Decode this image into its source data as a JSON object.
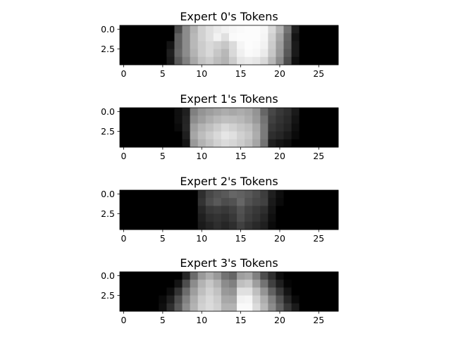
{
  "chart_data": [
    {
      "type": "heatmap",
      "title": "Expert 0's Tokens",
      "colormap": "gray",
      "x_ticks": [
        0,
        5,
        10,
        15,
        20,
        25
      ],
      "y_ticks": [
        "0.0",
        "2.5"
      ],
      "values": [
        [
          0,
          0,
          0,
          0,
          0,
          0,
          0,
          0.3,
          0.55,
          0.7,
          0.82,
          0.88,
          0.92,
          0.95,
          0.97,
          0.98,
          0.99,
          0.99,
          0.97,
          0.85,
          0.7,
          0.45,
          0.12,
          0,
          0,
          0,
          0,
          0
        ],
        [
          0,
          0,
          0,
          0,
          0,
          0,
          0,
          0.38,
          0.55,
          0.72,
          0.82,
          0.88,
          0.95,
          0.88,
          0.98,
          0.99,
          0.99,
          0.99,
          0.96,
          0.82,
          0.65,
          0.4,
          0.08,
          0,
          0,
          0,
          0,
          0
        ],
        [
          0,
          0,
          0,
          0,
          0,
          0,
          0.08,
          0.38,
          0.55,
          0.72,
          0.8,
          0.85,
          0.82,
          0.78,
          0.86,
          0.96,
          0.99,
          0.98,
          0.95,
          0.8,
          0.62,
          0.38,
          0.1,
          0,
          0,
          0,
          0,
          0
        ],
        [
          0,
          0,
          0,
          0,
          0,
          0,
          0.12,
          0.4,
          0.55,
          0.7,
          0.8,
          0.85,
          0.78,
          0.72,
          0.85,
          0.94,
          0.98,
          0.97,
          0.92,
          0.78,
          0.6,
          0.35,
          0.1,
          0,
          0,
          0,
          0,
          0
        ],
        [
          0,
          0,
          0,
          0,
          0,
          0,
          0.1,
          0.35,
          0.5,
          0.66,
          0.76,
          0.8,
          0.74,
          0.7,
          0.8,
          0.9,
          0.92,
          0.9,
          0.85,
          0.72,
          0.55,
          0.3,
          0.06,
          0,
          0,
          0,
          0,
          0
        ]
      ]
    },
    {
      "type": "heatmap",
      "title": "Expert 1's Tokens",
      "colormap": "gray",
      "x_ticks": [
        0,
        5,
        10,
        15,
        20,
        25
      ],
      "y_ticks": [
        "0.0",
        "2.5"
      ],
      "values": [
        [
          0,
          0,
          0,
          0,
          0,
          0,
          0,
          0.06,
          0.12,
          0.5,
          0.58,
          0.62,
          0.65,
          0.68,
          0.66,
          0.68,
          0.65,
          0.58,
          0.4,
          0.28,
          0.22,
          0.18,
          0.1,
          0,
          0,
          0,
          0,
          0
        ],
        [
          0,
          0,
          0,
          0,
          0,
          0,
          0,
          0.06,
          0.14,
          0.55,
          0.62,
          0.68,
          0.72,
          0.75,
          0.74,
          0.72,
          0.68,
          0.6,
          0.45,
          0.25,
          0.2,
          0.16,
          0.08,
          0,
          0,
          0,
          0,
          0
        ],
        [
          0,
          0,
          0,
          0,
          0,
          0,
          0,
          0.04,
          0.15,
          0.62,
          0.7,
          0.75,
          0.8,
          0.85,
          0.82,
          0.78,
          0.75,
          0.66,
          0.48,
          0.22,
          0.18,
          0.14,
          0.06,
          0,
          0,
          0,
          0,
          0
        ],
        [
          0,
          0,
          0,
          0,
          0,
          0,
          0,
          0,
          0.12,
          0.65,
          0.74,
          0.8,
          0.85,
          0.9,
          0.88,
          0.82,
          0.78,
          0.68,
          0.48,
          0.18,
          0.15,
          0.1,
          0.04,
          0,
          0,
          0,
          0,
          0
        ],
        [
          0,
          0,
          0,
          0,
          0,
          0,
          0,
          0,
          0.08,
          0.6,
          0.7,
          0.76,
          0.82,
          0.86,
          0.84,
          0.8,
          0.75,
          0.65,
          0.45,
          0.12,
          0.08,
          0.05,
          0,
          0,
          0,
          0,
          0,
          0
        ]
      ]
    },
    {
      "type": "heatmap",
      "title": "Expert 2's Tokens",
      "colormap": "gray",
      "x_ticks": [
        0,
        5,
        10,
        15,
        20,
        25
      ],
      "y_ticks": [
        "0.0",
        "2.5"
      ],
      "values": [
        [
          0,
          0,
          0,
          0,
          0,
          0,
          0,
          0,
          0,
          0,
          0.18,
          0.28,
          0.32,
          0.35,
          0.4,
          0.38,
          0.35,
          0.3,
          0.24,
          0.12,
          0.05,
          0,
          0,
          0,
          0,
          0,
          0,
          0
        ],
        [
          0,
          0,
          0,
          0,
          0,
          0,
          0,
          0,
          0,
          0,
          0.2,
          0.3,
          0.35,
          0.3,
          0.32,
          0.4,
          0.32,
          0.28,
          0.25,
          0.1,
          0.04,
          0,
          0,
          0,
          0,
          0,
          0,
          0
        ],
        [
          0,
          0,
          0,
          0,
          0,
          0,
          0,
          0,
          0,
          0,
          0.15,
          0.22,
          0.24,
          0.22,
          0.25,
          0.32,
          0.26,
          0.22,
          0.18,
          0.08,
          0,
          0,
          0,
          0,
          0,
          0,
          0,
          0
        ],
        [
          0,
          0,
          0,
          0,
          0,
          0,
          0,
          0,
          0,
          0,
          0.12,
          0.18,
          0.2,
          0.18,
          0.22,
          0.3,
          0.24,
          0.2,
          0.15,
          0.06,
          0,
          0,
          0,
          0,
          0,
          0,
          0,
          0
        ],
        [
          0,
          0,
          0,
          0,
          0,
          0,
          0,
          0,
          0,
          0,
          0.1,
          0.14,
          0.18,
          0.15,
          0.18,
          0.25,
          0.2,
          0.16,
          0.12,
          0.04,
          0,
          0,
          0,
          0,
          0,
          0,
          0,
          0
        ]
      ]
    },
    {
      "type": "heatmap",
      "title": "Expert 3's Tokens",
      "colormap": "gray",
      "x_ticks": [
        0,
        5,
        10,
        15,
        20,
        25
      ],
      "y_ticks": [
        "0.0",
        "2.5"
      ],
      "values": [
        [
          0,
          0,
          0,
          0,
          0,
          0,
          0,
          0,
          0.15,
          0.42,
          0.6,
          0.68,
          0.6,
          0.45,
          0.4,
          0.62,
          0.65,
          0.5,
          0.3,
          0.18,
          0.05,
          0,
          0,
          0,
          0,
          0,
          0,
          0
        ],
        [
          0,
          0,
          0,
          0,
          0,
          0,
          0,
          0.08,
          0.3,
          0.55,
          0.7,
          0.78,
          0.7,
          0.55,
          0.5,
          0.75,
          0.78,
          0.62,
          0.45,
          0.25,
          0.12,
          0.02,
          0,
          0,
          0,
          0,
          0,
          0
        ],
        [
          0,
          0,
          0,
          0,
          0,
          0,
          0.05,
          0.2,
          0.42,
          0.62,
          0.75,
          0.82,
          0.76,
          0.6,
          0.58,
          0.88,
          0.88,
          0.75,
          0.58,
          0.38,
          0.22,
          0.08,
          0,
          0,
          0,
          0,
          0,
          0
        ],
        [
          0,
          0,
          0,
          0,
          0,
          0.04,
          0.12,
          0.3,
          0.5,
          0.68,
          0.8,
          0.85,
          0.8,
          0.66,
          0.65,
          0.95,
          0.96,
          0.82,
          0.68,
          0.5,
          0.32,
          0.15,
          0.04,
          0,
          0,
          0,
          0,
          0
        ],
        [
          0,
          0,
          0,
          0,
          0,
          0.06,
          0.18,
          0.35,
          0.55,
          0.7,
          0.82,
          0.86,
          0.82,
          0.7,
          0.7,
          0.98,
          0.98,
          0.86,
          0.72,
          0.55,
          0.38,
          0.22,
          0.1,
          0,
          0,
          0,
          0,
          0
        ]
      ]
    }
  ]
}
